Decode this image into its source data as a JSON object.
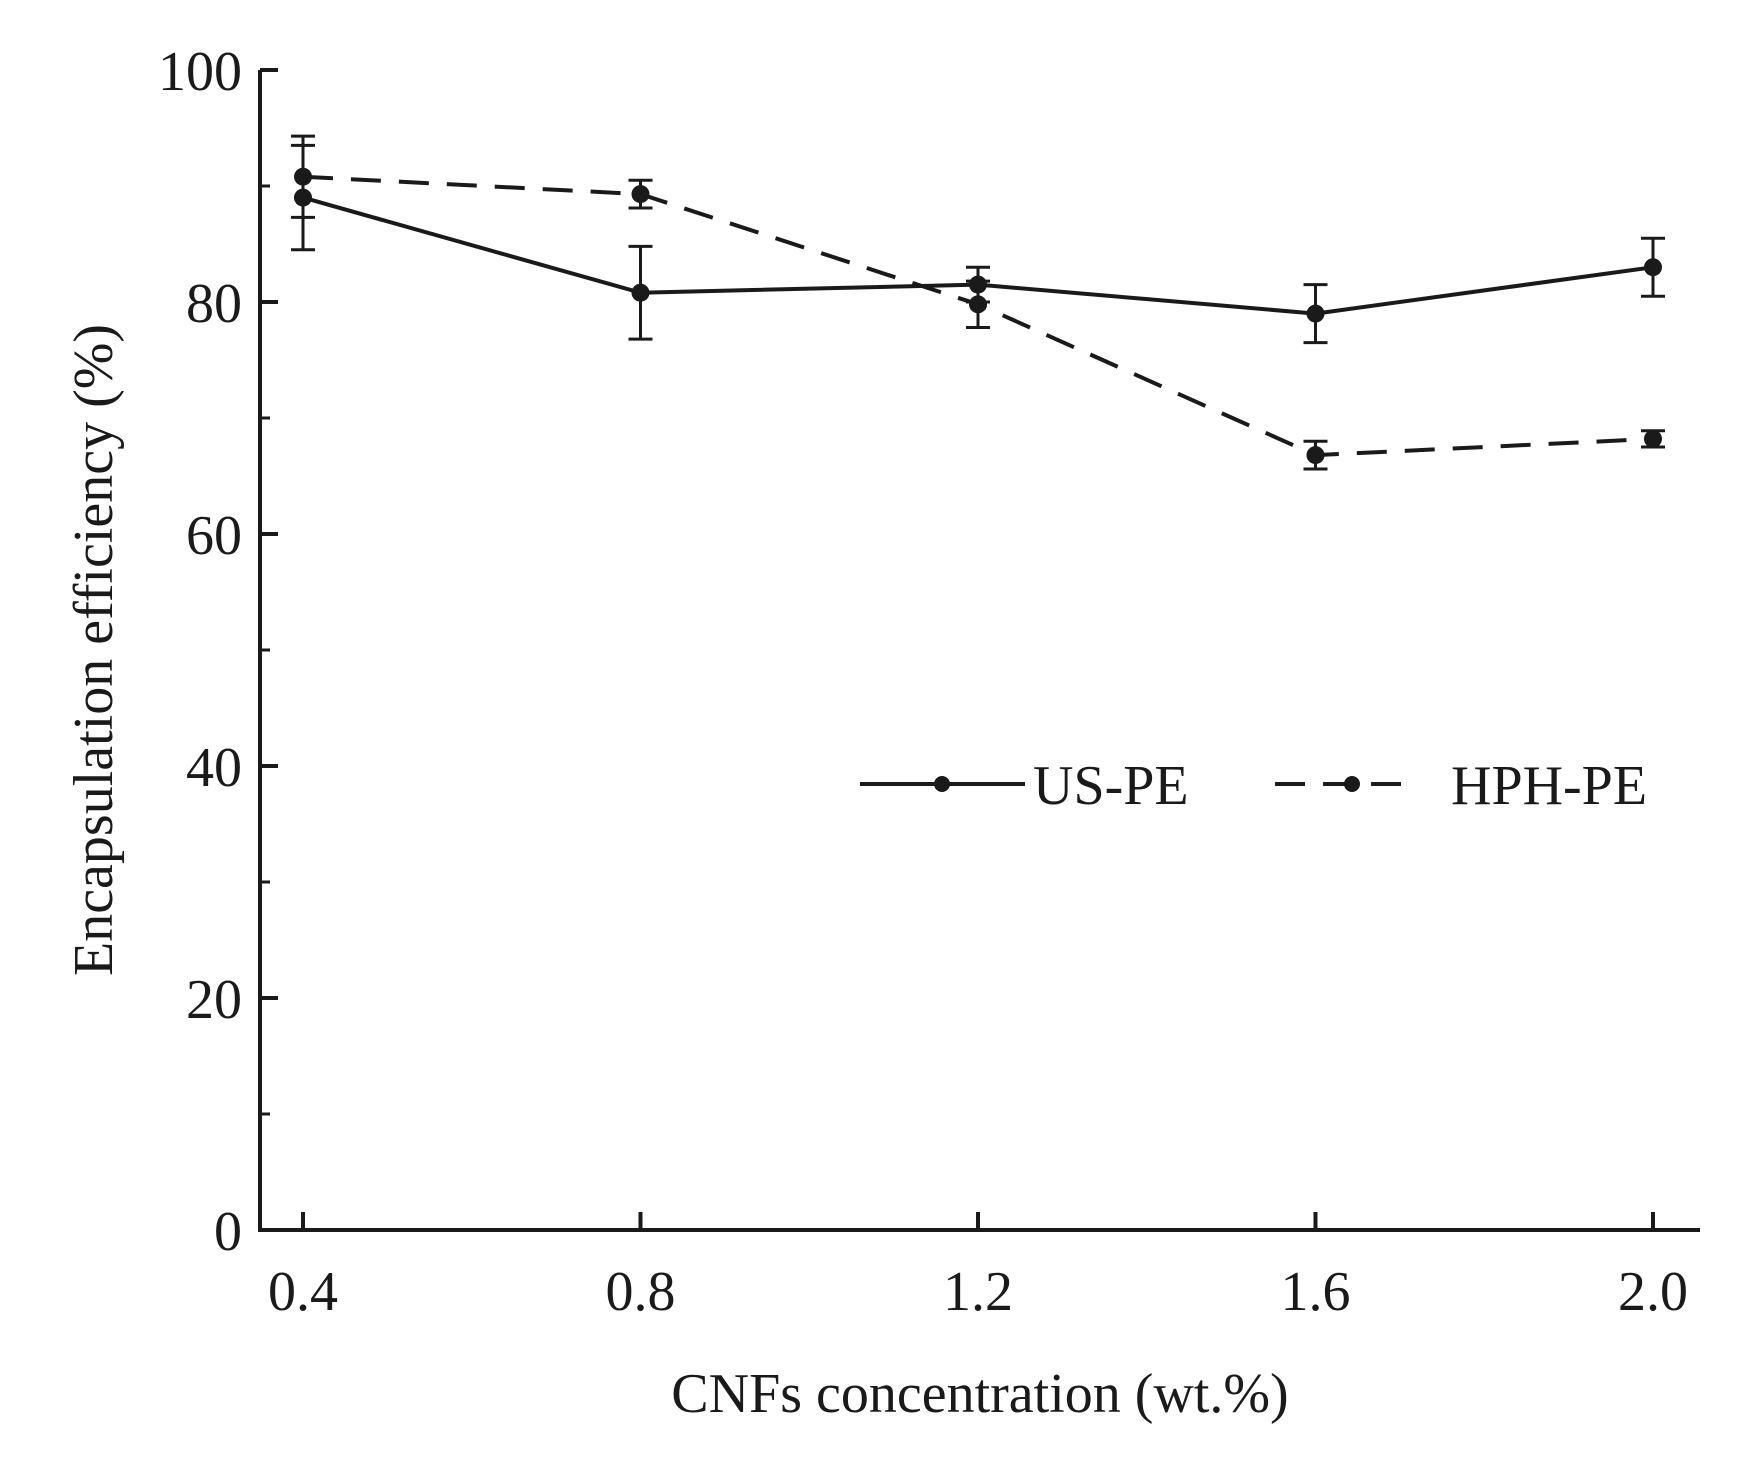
{
  "chart_data": {
    "type": "line",
    "title": "",
    "xlabel": "CNFs concentration (wt.%)",
    "ylabel": "Encapsulation efficiency (%)",
    "x": [
      0.4,
      0.8,
      1.2,
      1.6,
      2.0
    ],
    "x_tick_labels": [
      "0.4",
      "0.8",
      "1.2",
      "1.6",
      "2.0"
    ],
    "y_ticks": [
      0,
      20,
      40,
      60,
      80,
      100
    ],
    "y_tick_labels": [
      "0",
      "20",
      "40",
      "60",
      "80",
      "100"
    ],
    "xlim": [
      0.35,
      2.05
    ],
    "ylim": [
      0,
      100
    ],
    "grid": false,
    "legend_position": "right-middle",
    "series": [
      {
        "name": "US-PE",
        "style": "solid",
        "values": [
          89.0,
          80.8,
          81.5,
          79.0,
          83.0
        ],
        "errors": [
          4.5,
          4.0,
          1.5,
          2.5,
          2.5
        ]
      },
      {
        "name": "HPH-PE",
        "style": "dashed",
        "values": [
          90.8,
          89.3,
          79.8,
          66.8,
          68.2
        ],
        "errors": [
          3.5,
          1.2,
          2.0,
          1.2,
          0.7
        ]
      }
    ],
    "colors": {
      "line": "#1a1a1a"
    }
  }
}
